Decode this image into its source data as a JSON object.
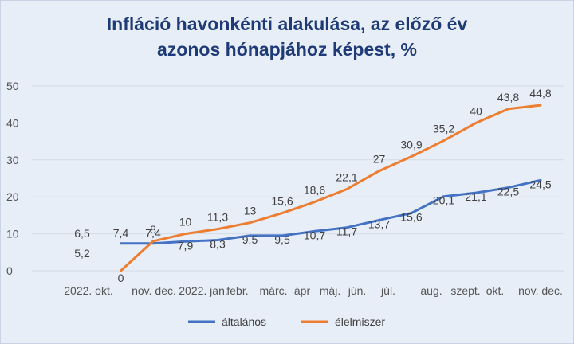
{
  "chart_data": {
    "type": "line",
    "title_line1": "Infláció havonkénti alakulása, az előző év",
    "title_line2": "azonos hónapjához képest, %",
    "categories": [
      "2022. okt.",
      "nov.",
      "dec.",
      "2022. jan.",
      "febr.",
      "márc.",
      "ápr",
      "máj.",
      "jún.",
      "júl.",
      "aug.",
      "szept.",
      "okt.",
      "nov.",
      "dec."
    ],
    "category_labels": [
      "2022. okt.",
      "nov. dec.",
      "2022. jan.",
      "febr.",
      "márc.",
      "ápr",
      "máj.",
      "jún.",
      "júl.",
      "aug.",
      "szept.",
      "okt.",
      "nov.",
      "dec."
    ],
    "ylim": [
      0,
      50
    ],
    "yticks": [
      0,
      10,
      20,
      30,
      40,
      50
    ],
    "grid": true,
    "legend_position": "bottom",
    "series": [
      {
        "name": "általános",
        "color": "#4472c4",
        "values": [
          null,
          7.4,
          7.4,
          7.9,
          8.3,
          9.5,
          9.5,
          10.7,
          11.7,
          13.7,
          15.6,
          20.1,
          21.1,
          22.5,
          24.5
        ],
        "labels": [
          "",
          "7,4",
          "7,4",
          "7,9",
          "8,3",
          "9,5",
          "9,5",
          "10,7",
          "11,7",
          "13,7",
          "15,6",
          "20,1",
          "21,1",
          "22,5",
          "24,5"
        ]
      },
      {
        "name": "élelmiszer",
        "color": "#ed7d31",
        "values": [
          null,
          0,
          8,
          10,
          11.3,
          13,
          15.6,
          18.6,
          22.1,
          27,
          30.9,
          35.2,
          40,
          43.8,
          44.8
        ],
        "labels": [
          "",
          "0",
          "8",
          "10",
          "11,3",
          "13",
          "15,6",
          "18,6",
          "22,1",
          "27",
          "30,9",
          "35,2",
          "40",
          "43,8",
          "44,8"
        ]
      }
    ],
    "floating_labels": [
      "6,5",
      "5,2"
    ]
  }
}
